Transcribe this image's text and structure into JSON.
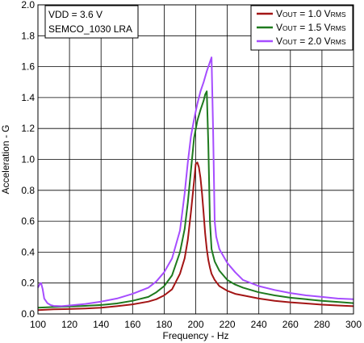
{
  "chart_data": {
    "type": "line",
    "xlabel": "Frequency - Hz",
    "ylabel": "Acceleration - G",
    "xlim": [
      100,
      300
    ],
    "ylim": [
      0,
      2.0
    ],
    "xticks": [
      "100",
      "120",
      "140",
      "160",
      "180",
      "200",
      "220",
      "240",
      "260",
      "280",
      "300"
    ],
    "yticks": [
      "0.0",
      "0.2",
      "0.4",
      "0.6",
      "0.8",
      "1.0",
      "1.2",
      "1.4",
      "1.6",
      "1.8",
      "2.0"
    ],
    "grid": true,
    "conditions": [
      "VDD = 3.6 V",
      "SEMCO_1030 LRA"
    ],
    "legend_position": "top-right",
    "series": [
      {
        "name_main": "V",
        "name_sub": "OUT",
        "name_mid": " = 1.0 V",
        "name_sub2": "RMS",
        "color": "#a31515",
        "x": [
          100,
          110,
          120,
          130,
          140,
          150,
          160,
          170,
          175,
          180,
          185,
          190,
          193,
          195,
          197,
          199,
          200,
          201,
          202,
          203,
          204,
          205,
          206,
          207,
          208,
          209,
          210,
          212,
          215,
          220,
          225,
          230,
          240,
          250,
          260,
          270,
          280,
          290,
          300
        ],
        "y": [
          0.025,
          0.03,
          0.032,
          0.035,
          0.04,
          0.05,
          0.062,
          0.08,
          0.095,
          0.12,
          0.16,
          0.26,
          0.36,
          0.48,
          0.66,
          0.86,
          0.97,
          0.98,
          0.95,
          0.88,
          0.78,
          0.65,
          0.52,
          0.42,
          0.35,
          0.3,
          0.26,
          0.22,
          0.18,
          0.15,
          0.13,
          0.12,
          0.1,
          0.085,
          0.075,
          0.068,
          0.06,
          0.055,
          0.05
        ]
      },
      {
        "name_main": "V",
        "name_sub": "OUT",
        "name_mid": " = 1.5 V",
        "name_sub2": "RMS",
        "color": "#1e7a1e",
        "x": [
          100,
          110,
          120,
          130,
          140,
          150,
          160,
          170,
          175,
          180,
          185,
          190,
          193,
          195,
          197,
          199,
          201,
          203,
          205,
          206,
          207,
          208,
          209,
          210,
          212,
          215,
          220,
          225,
          230,
          240,
          250,
          260,
          270,
          280,
          290,
          300
        ],
        "y": [
          0.04,
          0.045,
          0.048,
          0.052,
          0.058,
          0.068,
          0.085,
          0.11,
          0.14,
          0.18,
          0.25,
          0.4,
          0.55,
          0.72,
          0.93,
          1.14,
          1.25,
          1.32,
          1.38,
          1.42,
          1.44,
          1.1,
          0.6,
          0.42,
          0.34,
          0.28,
          0.22,
          0.19,
          0.17,
          0.14,
          0.12,
          0.105,
          0.095,
          0.085,
          0.078,
          0.07
        ]
      },
      {
        "name_main": "V",
        "name_sub": "OUT",
        "name_mid": " = 2.0 V",
        "name_sub2": "RMS",
        "color": "#a64dff",
        "x": [
          100,
          101,
          102,
          103,
          104,
          106,
          108,
          110,
          115,
          120,
          130,
          140,
          150,
          160,
          170,
          175,
          180,
          185,
          190,
          193,
          195,
          197,
          199,
          201,
          203,
          205,
          207,
          209,
          210,
          211,
          212,
          213,
          215,
          220,
          225,
          230,
          240,
          250,
          260,
          270,
          280,
          290,
          300
        ],
        "y": [
          0.17,
          0.19,
          0.2,
          0.16,
          0.1,
          0.07,
          0.058,
          0.052,
          0.05,
          0.055,
          0.065,
          0.08,
          0.1,
          0.13,
          0.17,
          0.21,
          0.27,
          0.36,
          0.54,
          0.78,
          0.98,
          1.15,
          1.26,
          1.36,
          1.44,
          1.5,
          1.57,
          1.63,
          1.66,
          1.2,
          0.6,
          0.5,
          0.42,
          0.33,
          0.27,
          0.22,
          0.18,
          0.155,
          0.135,
          0.12,
          0.11,
          0.1,
          0.095
        ]
      }
    ]
  }
}
